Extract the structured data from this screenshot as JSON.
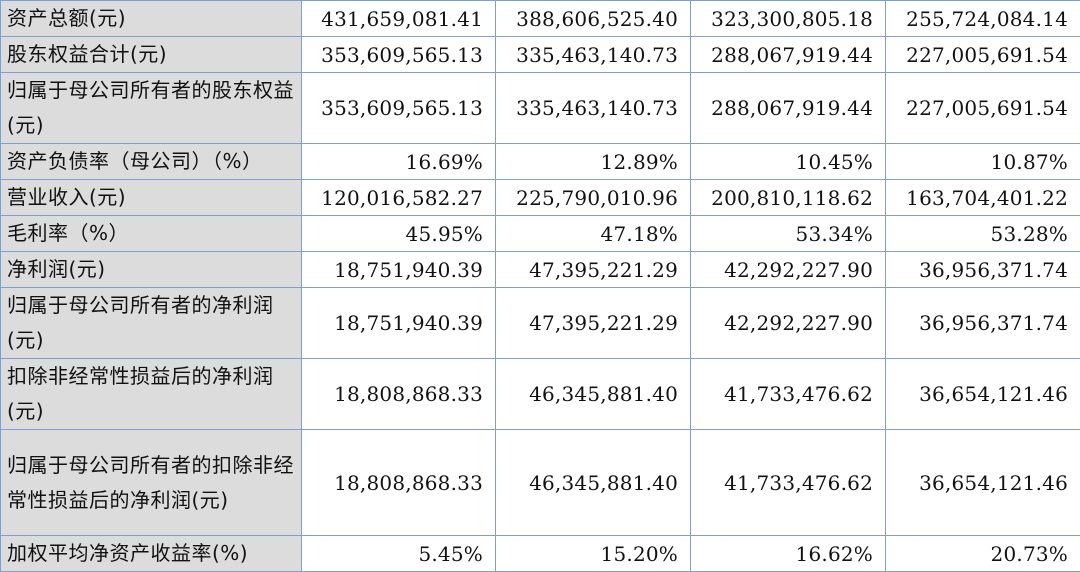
{
  "rows": [
    {
      "label": "资产总额(元)",
      "values": [
        "431,659,081.41",
        "388,606,525.40",
        "323,300,805.18",
        "255,724,084.14"
      ]
    },
    {
      "label": "股东权益合计(元)",
      "values": [
        "353,609,565.13",
        "335,463,140.73",
        "288,067,919.44",
        "227,005,691.54"
      ]
    },
    {
      "label": "归属于母公司所有者的股东权益(元)",
      "values": [
        "353,609,565.13",
        "335,463,140.73",
        "288,067,919.44",
        "227,005,691.54"
      ]
    },
    {
      "label": "资产负债率（母公司）（%）",
      "values": [
        "16.69%",
        "12.89%",
        "10.45%",
        "10.87%"
      ]
    },
    {
      "label": "营业收入(元)",
      "values": [
        "120,016,582.27",
        "225,790,010.96",
        "200,810,118.62",
        "163,704,401.22"
      ]
    },
    {
      "label": "毛利率（%）",
      "values": [
        "45.95%",
        "47.18%",
        "53.34%",
        "53.28%"
      ]
    },
    {
      "label": "净利润(元)",
      "values": [
        "18,751,940.39",
        "47,395,221.29",
        "42,292,227.90",
        "36,956,371.74"
      ]
    },
    {
      "label": "归属于母公司所有者的净利润(元)",
      "values": [
        "18,751,940.39",
        "47,395,221.29",
        "42,292,227.90",
        "36,956,371.74"
      ]
    },
    {
      "label": "扣除非经常性损益后的净利润(元)",
      "values": [
        "18,808,868.33",
        "46,345,881.40",
        "41,733,476.62",
        "36,654,121.46"
      ]
    },
    {
      "label": "归属于母公司所有者的扣除非经常性损益后的净利润(元)",
      "values": [
        "18,808,868.33",
        "46,345,881.40",
        "41,733,476.62",
        "36,654,121.46"
      ]
    },
    {
      "label": "加权平均净资产收益率(%)",
      "values": [
        "5.45%",
        "15.20%",
        "16.62%",
        "20.73%"
      ]
    }
  ]
}
